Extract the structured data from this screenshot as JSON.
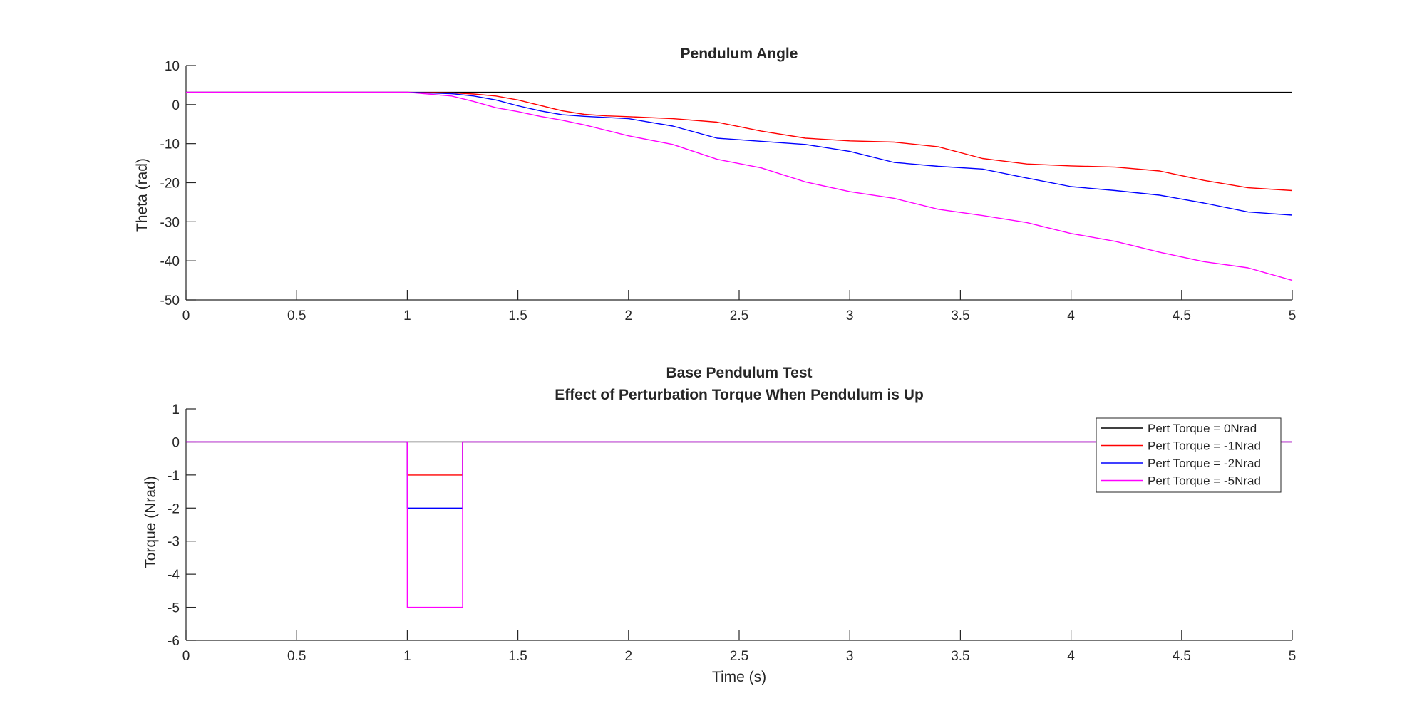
{
  "figure": {
    "background": "#ffffff",
    "axis_color": "#262626"
  },
  "chart_data": [
    {
      "type": "line",
      "title": "Pendulum Angle",
      "xlabel": "",
      "ylabel": "Theta (rad)",
      "xlim": [
        0,
        5
      ],
      "ylim": [
        -50,
        10
      ],
      "xticks": [
        0,
        0.5,
        1,
        1.5,
        2,
        2.5,
        3,
        3.5,
        4,
        4.5,
        5
      ],
      "xtick_labels": [
        "0",
        "0.5",
        "1",
        "1.5",
        "2",
        "2.5",
        "3",
        "3.5",
        "4",
        "4.5",
        "5"
      ],
      "yticks": [
        10,
        0,
        -10,
        -20,
        -30,
        -40,
        -50
      ],
      "ytick_labels": [
        "10",
        "0",
        "-10",
        "-20",
        "-30",
        "-40",
        "-50"
      ],
      "grid": false,
      "series": [
        {
          "color": "#000000",
          "x": [
            0,
            5
          ],
          "y": [
            3.14,
            3.14
          ]
        },
        {
          "color": "#ff0000",
          "x": [
            0,
            1.0,
            1.2,
            1.3,
            1.4,
            1.5,
            1.6,
            1.7,
            1.8,
            1.9,
            2.0,
            2.2,
            2.4,
            2.6,
            2.8,
            3.0,
            3.2,
            3.4,
            3.6,
            3.8,
            4.0,
            4.2,
            4.4,
            4.6,
            4.8,
            5.0
          ],
          "y": [
            3.14,
            3.14,
            3.0,
            2.7,
            2.2,
            1.2,
            -0.2,
            -1.6,
            -2.5,
            -2.9,
            -3.1,
            -3.6,
            -4.5,
            -6.8,
            -8.6,
            -9.3,
            -9.6,
            -10.8,
            -13.8,
            -15.2,
            -15.7,
            -16.0,
            -17.0,
            -19.4,
            -21.3,
            -22.0
          ]
        },
        {
          "color": "#0000ff",
          "x": [
            0,
            1.0,
            1.2,
            1.3,
            1.4,
            1.5,
            1.6,
            1.7,
            1.8,
            1.9,
            2.0,
            2.2,
            2.4,
            2.6,
            2.8,
            3.0,
            3.2,
            3.4,
            3.6,
            3.8,
            4.0,
            4.2,
            4.4,
            4.6,
            4.8,
            5.0
          ],
          "y": [
            3.14,
            3.14,
            2.8,
            2.2,
            1.2,
            -0.3,
            -1.6,
            -2.6,
            -3.0,
            -3.3,
            -3.6,
            -5.5,
            -8.6,
            -9.4,
            -10.2,
            -12.0,
            -14.8,
            -15.8,
            -16.5,
            -18.8,
            -21.0,
            -22.0,
            -23.2,
            -25.2,
            -27.5,
            -28.3
          ]
        },
        {
          "color": "#ff00ff",
          "x": [
            0,
            1.0,
            1.2,
            1.3,
            1.4,
            1.5,
            1.6,
            1.7,
            1.8,
            1.9,
            2.0,
            2.2,
            2.4,
            2.6,
            2.8,
            3.0,
            3.2,
            3.4,
            3.6,
            3.8,
            4.0,
            4.2,
            4.4,
            4.6,
            4.8,
            5.0
          ],
          "y": [
            3.14,
            3.14,
            2.2,
            0.8,
            -0.8,
            -1.8,
            -3.0,
            -4.0,
            -5.2,
            -6.6,
            -8.0,
            -10.2,
            -14.0,
            -16.2,
            -19.8,
            -22.3,
            -24.0,
            -26.8,
            -28.4,
            -30.2,
            -33.0,
            -35.0,
            -37.8,
            -40.2,
            -41.8,
            -45.0
          ]
        }
      ]
    },
    {
      "type": "line",
      "title": "Base Pendulum Test",
      "subtitle": "Effect of Perturbation Torque When Pendulum is Up",
      "xlabel": "Time (s)",
      "ylabel": "Torque (Nrad)",
      "xlim": [
        0,
        5
      ],
      "ylim": [
        -6,
        1
      ],
      "xticks": [
        0,
        0.5,
        1,
        1.5,
        2,
        2.5,
        3,
        3.5,
        4,
        4.5,
        5
      ],
      "xtick_labels": [
        "0",
        "0.5",
        "1",
        "1.5",
        "2",
        "2.5",
        "3",
        "3.5",
        "4",
        "4.5",
        "5"
      ],
      "yticks": [
        1,
        0,
        -1,
        -2,
        -3,
        -4,
        -5,
        -6
      ],
      "ytick_labels": [
        "1",
        "0",
        "-1",
        "-2",
        "-3",
        "-4",
        "-5",
        "-6"
      ],
      "grid": false,
      "legend": {
        "location": "top-right",
        "entries": [
          "Pert Torque = 0Nrad",
          "Pert Torque = -1Nrad",
          "Pert Torque = -2Nrad",
          "Pert Torque = -5Nrad"
        ]
      },
      "series": [
        {
          "name": "Pert Torque = 0Nrad",
          "color": "#000000",
          "x": [
            0,
            5
          ],
          "y": [
            0,
            0
          ]
        },
        {
          "name": "Pert Torque = -1Nrad",
          "color": "#ff0000",
          "x": [
            0,
            1.0,
            1.0,
            1.25,
            1.25,
            5
          ],
          "y": [
            0,
            0,
            -1,
            -1,
            0,
            0
          ]
        },
        {
          "name": "Pert Torque = -2Nrad",
          "color": "#0000ff",
          "x": [
            0,
            1.0,
            1.0,
            1.25,
            1.25,
            5
          ],
          "y": [
            0,
            0,
            -2,
            -2,
            0,
            0
          ]
        },
        {
          "name": "Pert Torque = -5Nrad",
          "color": "#ff00ff",
          "x": [
            0,
            1.0,
            1.0,
            1.25,
            1.25,
            5
          ],
          "y": [
            0,
            0,
            -5,
            -5,
            0,
            0
          ]
        }
      ]
    }
  ]
}
